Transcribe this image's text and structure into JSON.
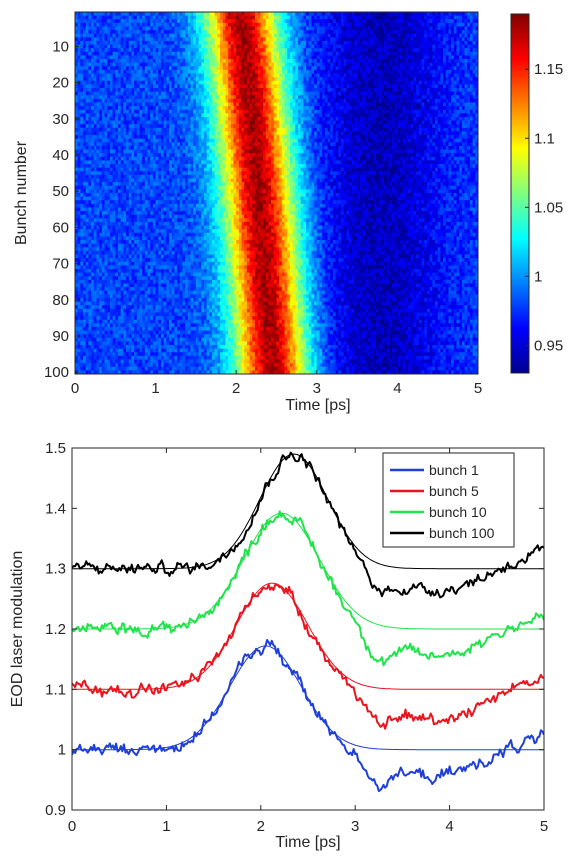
{
  "chart_data": [
    {
      "type": "heatmap",
      "xlabel": "Time [ps]",
      "ylabel": "Bunch number",
      "xlim": [
        0,
        5
      ],
      "ylim": [
        100,
        1
      ],
      "x_ticks": [
        "0",
        "1",
        "2",
        "3",
        "4",
        "5"
      ],
      "y_ticks": [
        "10",
        "20",
        "30",
        "40",
        "50",
        "60",
        "70",
        "80",
        "90",
        "100"
      ],
      "y_axis_reversed": true,
      "colormap": "jet",
      "color_range": [
        0.93,
        1.19
      ],
      "colorbar_ticks": [
        "0.95",
        "1",
        "1.05",
        "1.1",
        "1.15"
      ],
      "rows": 100,
      "time_bins": 150,
      "peak": {
        "value": 1.18,
        "center_ps_bunch_1": 2.05,
        "center_ps_bunch_100": 2.45,
        "fwhm_ps": 0.75
      },
      "baseline": 0.98,
      "dip": {
        "center_ps": 3.8,
        "depth": 0.035
      },
      "noise_amplitude": 0.015
    },
    {
      "type": "line",
      "xlabel": "Time [ps]",
      "ylabel": "EOD laser modulation",
      "xlim": [
        0,
        5
      ],
      "ylim": [
        0.9,
        1.5
      ],
      "x_ticks": [
        "0",
        "1",
        "2",
        "3",
        "4",
        "5"
      ],
      "y_ticks": [
        "0.9",
        "1",
        "1.1",
        "1.2",
        "1.3",
        "1.4",
        "1.5"
      ],
      "legend_position": "top-right",
      "series": [
        {
          "name": "bunch 1",
          "color": "#1f3fd8",
          "baseline": 1.0,
          "amplitude": 0.172,
          "peak_ps": 2.05,
          "width_ps": 0.38,
          "dip_depth": 0.045
        },
        {
          "name": "bunch 5",
          "color": "#e8141e",
          "baseline": 1.1,
          "amplitude": 0.176,
          "peak_ps": 2.12,
          "width_ps": 0.38,
          "dip_depth": 0.05
        },
        {
          "name": "bunch 10",
          "color": "#22e34b",
          "baseline": 1.2,
          "amplitude": 0.192,
          "peak_ps": 2.22,
          "width_ps": 0.4,
          "dip_depth": 0.045
        },
        {
          "name": "bunch 100",
          "color": "#000000",
          "baseline": 1.3,
          "amplitude": 0.19,
          "peak_ps": 2.35,
          "width_ps": 0.36,
          "dip_depth": 0.035
        }
      ]
    }
  ]
}
